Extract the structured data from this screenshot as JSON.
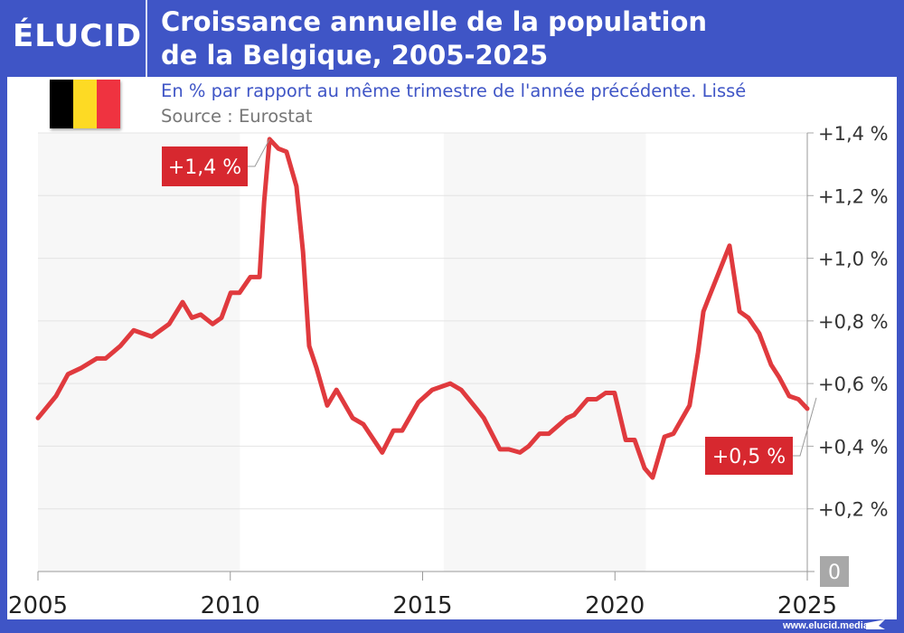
{
  "header": {
    "logo": "ÉLUCID",
    "title_line1": "Croissance annuelle de la population",
    "title_line2": "de la Belgique, 2005-2025",
    "subtitle": "En % par rapport au même trimestre de l'année précédente. Lissé",
    "source": "Source : Eurostat",
    "flag_colors": [
      "#000000",
      "#fdda24",
      "#ef3340"
    ]
  },
  "footer": {
    "url": "www.elucid.media"
  },
  "colors": {
    "frame": "#3f55c6",
    "line": "#e03a3e",
    "annotation": "#d7282f",
    "band": "#f7f7f7"
  },
  "chart_data": {
    "type": "line",
    "title": "Croissance annuelle de la population de la Belgique, 2005-2025",
    "xlabel": "",
    "ylabel": "",
    "xlim": [
      2005,
      2025
    ],
    "ylim": [
      0,
      1.4
    ],
    "x_ticks": [
      "2005",
      "2010",
      "2015",
      "2020",
      "2025"
    ],
    "y_ticks": [
      "0",
      "+0,2 %",
      "+0,4 %",
      "+0,6 %",
      "+0,8 %",
      "+1,0 %",
      "+1,2 %",
      "+1,4 %"
    ],
    "y_axis_side": "right",
    "grid": true,
    "series": [
      {
        "x": [
          2005.0,
          2005.47,
          2005.78,
          2006.13,
          2006.53,
          2006.76,
          2007.14,
          2007.49,
          2007.96,
          2008.41,
          2008.76,
          2009.0,
          2009.23,
          2009.54,
          2009.77,
          2010.01,
          2010.24,
          2010.52,
          2010.76,
          2010.88,
          2011.02,
          2011.25,
          2011.46,
          2011.72,
          2011.89,
          2012.05,
          2012.24,
          2012.52,
          2012.76,
          2013.18,
          2013.46,
          2013.95,
          2014.24,
          2014.47,
          2014.89,
          2015.25,
          2015.72,
          2016.0,
          2016.4,
          2016.59,
          2017.01,
          2017.24,
          2017.53,
          2017.76,
          2018.04,
          2018.28,
          2018.75,
          2018.94,
          2019.29,
          2019.52,
          2019.76,
          2019.99,
          2020.28,
          2020.51,
          2020.77,
          2020.98,
          2021.29,
          2021.52,
          2021.94,
          2022.16,
          2022.3,
          2022.46,
          2022.98,
          2023.24,
          2023.47,
          2023.75,
          2024.06,
          2024.27,
          2024.53,
          2024.77,
          2025.0
        ],
        "y": [
          0.49,
          0.56,
          0.63,
          0.65,
          0.68,
          0.68,
          0.72,
          0.77,
          0.75,
          0.79,
          0.86,
          0.81,
          0.82,
          0.79,
          0.81,
          0.89,
          0.89,
          0.94,
          0.94,
          1.18,
          1.38,
          1.35,
          1.34,
          1.23,
          1.02,
          0.72,
          0.65,
          0.53,
          0.58,
          0.49,
          0.47,
          0.38,
          0.45,
          0.45,
          0.54,
          0.58,
          0.6,
          0.58,
          0.52,
          0.49,
          0.39,
          0.39,
          0.38,
          0.4,
          0.44,
          0.44,
          0.49,
          0.5,
          0.55,
          0.55,
          0.57,
          0.57,
          0.42,
          0.42,
          0.33,
          0.3,
          0.43,
          0.44,
          0.53,
          0.7,
          0.83,
          0.88,
          1.04,
          0.83,
          0.81,
          0.76,
          0.66,
          0.62,
          0.56,
          0.55,
          0.52
        ]
      }
    ],
    "annotations": [
      {
        "text": "+1,4 %",
        "x": 2011.02,
        "y": 1.38
      },
      {
        "text": "+0,5 %",
        "x": 2025.0,
        "y": 0.52
      }
    ]
  }
}
